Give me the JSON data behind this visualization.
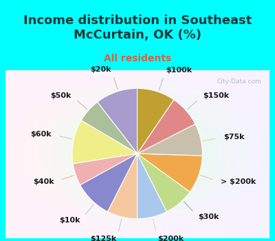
{
  "title": "Income distribution in Southeast\nMcCurtain, OK (%)",
  "subtitle": "All residents",
  "title_color": "#1a3a3a",
  "subtitle_color": "#cc6644",
  "background_top": "#00ffff",
  "background_chart_left": "#c8e8d8",
  "background_chart_right": "#f0f8f4",
  "watermark": "City-Data.com",
  "labels": [
    "$100k",
    "$150k",
    "$75k",
    "> $200k",
    "$30k",
    "$200k",
    "$125k",
    "$10k",
    "$40k",
    "$60k",
    "$50k",
    "$20k"
  ],
  "values": [
    10.5,
    6.0,
    11.0,
    5.5,
    9.5,
    7.5,
    7.5,
    7.5,
    9.5,
    8.0,
    8.0,
    9.5
  ],
  "colors": [
    "#a89ccc",
    "#aabf9a",
    "#f0ee88",
    "#f0b0b0",
    "#8888cc",
    "#f5c8a0",
    "#aac8ee",
    "#c0dc88",
    "#f0a84a",
    "#c8c0aa",
    "#e08888",
    "#c0a030"
  ],
  "startangle": 90,
  "label_fontsize": 8,
  "title_fontsize": 13,
  "subtitle_fontsize": 10
}
